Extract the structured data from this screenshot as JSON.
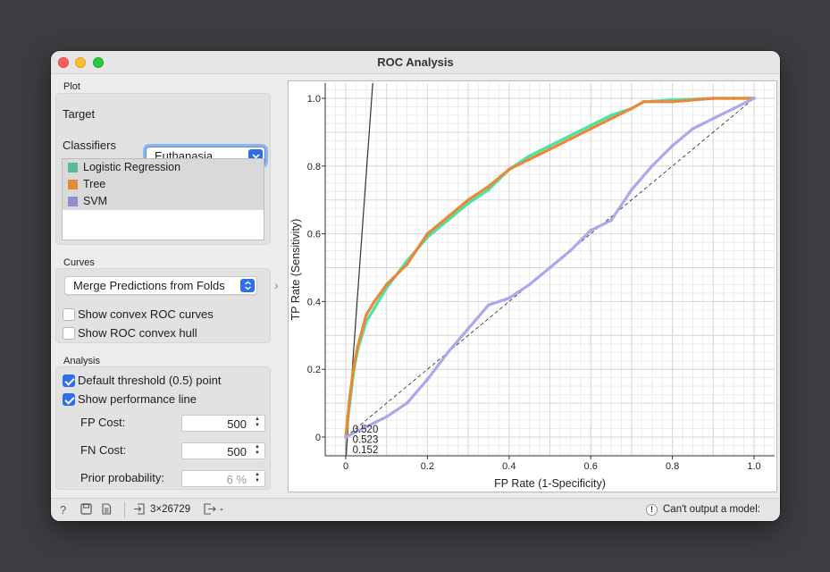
{
  "window": {
    "title": "ROC Analysis"
  },
  "plot_section": {
    "title": "Plot",
    "target_label": "Target",
    "target_value": "Euthanasia",
    "classifiers_label": "Classifiers",
    "classifiers": [
      {
        "name": "Logistic Regression",
        "color": "#5bb89a"
      },
      {
        "name": "Tree",
        "color": "#e08a3c"
      },
      {
        "name": "SVM",
        "color": "#8f8fd4"
      }
    ]
  },
  "curves_section": {
    "title": "Curves",
    "merge_value": "Merge Predictions from Folds",
    "show_convex_curves": {
      "label": "Show convex ROC curves",
      "checked": false
    },
    "show_convex_hull": {
      "label": "Show ROC convex hull",
      "checked": false
    }
  },
  "analysis_section": {
    "title": "Analysis",
    "default_threshold": {
      "label": "Default threshold (0.5) point",
      "checked": true
    },
    "show_perf_line": {
      "label": "Show performance line",
      "checked": true
    },
    "fp_cost": {
      "label": "FP Cost:",
      "value": "500"
    },
    "fn_cost": {
      "label": "FN Cost:",
      "value": "500"
    },
    "prior_probability": {
      "label": "Prior probability:",
      "value": "6 %"
    }
  },
  "chart_data": {
    "type": "line",
    "xlabel": "FP Rate (1-Specificity)",
    "ylabel": "TP Rate (Sensitivity)",
    "xlim": [
      0,
      1
    ],
    "ylim": [
      0,
      1
    ],
    "x_ticks": [
      "0",
      "0.2",
      "0.4",
      "0.6",
      "0.8",
      "1.0"
    ],
    "y_ticks": [
      "0",
      "0.2",
      "0.4",
      "0.6",
      "0.8",
      "1.0"
    ],
    "grid": true,
    "series": [
      {
        "name": "Logistic Regression",
        "color": "#4ee3a6",
        "x": [
          0,
          0.005,
          0.01,
          0.02,
          0.03,
          0.05,
          0.07,
          0.1,
          0.15,
          0.2,
          0.25,
          0.3,
          0.35,
          0.4,
          0.45,
          0.5,
          0.55,
          0.6,
          0.65,
          0.7,
          0.73,
          0.8,
          0.9,
          1.0
        ],
        "y": [
          0,
          0.05,
          0.1,
          0.2,
          0.26,
          0.34,
          0.38,
          0.44,
          0.52,
          0.59,
          0.64,
          0.69,
          0.73,
          0.79,
          0.83,
          0.86,
          0.89,
          0.92,
          0.95,
          0.97,
          0.99,
          0.995,
          1.0,
          1.0
        ]
      },
      {
        "name": "Tree",
        "color": "#e8893a",
        "x": [
          0,
          0.005,
          0.01,
          0.02,
          0.03,
          0.05,
          0.07,
          0.1,
          0.15,
          0.2,
          0.25,
          0.3,
          0.35,
          0.4,
          0.45,
          0.5,
          0.55,
          0.6,
          0.65,
          0.7,
          0.73,
          0.8,
          0.9,
          1.0
        ],
        "y": [
          0,
          0.06,
          0.12,
          0.21,
          0.27,
          0.36,
          0.4,
          0.45,
          0.51,
          0.6,
          0.65,
          0.7,
          0.74,
          0.79,
          0.82,
          0.85,
          0.88,
          0.91,
          0.94,
          0.97,
          0.99,
          0.99,
          1.0,
          1.0
        ]
      },
      {
        "name": "SVM",
        "color": "#a9a9ee",
        "x": [
          0,
          0.05,
          0.1,
          0.15,
          0.2,
          0.25,
          0.3,
          0.35,
          0.4,
          0.45,
          0.5,
          0.55,
          0.6,
          0.65,
          0.7,
          0.75,
          0.8,
          0.85,
          0.9,
          0.95,
          1.0
        ],
        "y": [
          0,
          0.03,
          0.06,
          0.1,
          0.17,
          0.25,
          0.32,
          0.39,
          0.41,
          0.45,
          0.5,
          0.55,
          0.61,
          0.64,
          0.73,
          0.8,
          0.86,
          0.91,
          0.94,
          0.97,
          1.0
        ]
      }
    ],
    "threshold_labels": [
      {
        "text": "0.520",
        "x": 0.01,
        "y": 0.01
      },
      {
        "text": "0.523",
        "x": 0.01,
        "y": -0.02
      },
      {
        "text": "0.152",
        "x": 0.01,
        "y": -0.05
      }
    ],
    "performance_line": {
      "x": [
        0,
        0.067
      ],
      "y": [
        -0.07,
        1.06
      ]
    }
  },
  "statusbar": {
    "data_shape": "3×26729",
    "output_value": "-",
    "warning": "Can't output a model:"
  }
}
